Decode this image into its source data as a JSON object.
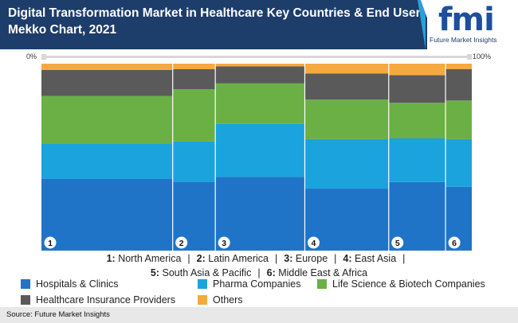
{
  "header": {
    "title": "Digital Transformation Market in Healthcare Key Countries & End User Mekko Chart, 2021",
    "logo_text": "fmi",
    "logo_subtitle": "Future Market Insights"
  },
  "axis": {
    "left_label": "0%",
    "right_label": "100%"
  },
  "colors": {
    "header_bg": "#1d3d6b",
    "hospitals": "#1f74c8",
    "pharma": "#1aa3dd",
    "life_science": "#6ab045",
    "insurance": "#5a5a5a",
    "others": "#f5a93e"
  },
  "chart_data": {
    "type": "mekko",
    "title": "Digital Transformation Market in Healthcare Key Countries & End User Mekko Chart, 2021",
    "categories": [
      "1",
      "2",
      "3",
      "4",
      "5",
      "6"
    ],
    "category_names": [
      "North America",
      "Latin America",
      "Europe",
      "East Asia",
      "South Asia & Pacific",
      "Middle East & Africa"
    ],
    "category_widths": [
      30.5,
      9.9,
      20.8,
      19.5,
      13.2,
      6.1
    ],
    "series": [
      {
        "name": "Hospitals & Clinics",
        "values": [
          40.0,
          37.5,
          41.0,
          34.5,
          38.5,
          35.5
        ]
      },
      {
        "name": "Pharma Companies",
        "values": [
          19.5,
          22.0,
          29.5,
          27.5,
          24.5,
          26.5
        ]
      },
      {
        "name": "Life Science & Biotech Companies",
        "values": [
          26.5,
          28.5,
          22.5,
          22.0,
          20.0,
          21.5
        ]
      },
      {
        "name": "Healthcare Insurance Providers",
        "values": [
          14.5,
          11.0,
          9.5,
          14.5,
          15.5,
          17.5
        ]
      },
      {
        "name": "Others",
        "values": [
          3.5,
          3.0,
          1.5,
          5.5,
          6.5,
          3.0
        ]
      }
    ],
    "xlim": [
      0,
      100
    ],
    "ylim": [
      0,
      100
    ]
  },
  "legend": {
    "country_line_1": [
      {
        "num": "1:",
        "name": "North America"
      },
      {
        "num": "2:",
        "name": "Latin America"
      },
      {
        "num": "3:",
        "name": "Europe"
      },
      {
        "num": "4:",
        "name": "East Asia"
      }
    ],
    "country_line_2": [
      {
        "num": "5:",
        "name": "South Asia & Pacific"
      },
      {
        "num": "6:",
        "name": "Middle East & Africa"
      }
    ],
    "separator": "|",
    "series": [
      {
        "label": "Hospitals & Clinics",
        "color": "#1f74c8"
      },
      {
        "label": "Pharma Companies",
        "color": "#1aa3dd"
      },
      {
        "label": "Life Science & Biotech Companies",
        "color": "#6ab045"
      },
      {
        "label": "Healthcare Insurance Providers",
        "color": "#5a5a5a"
      },
      {
        "label": "Others",
        "color": "#f5a93e"
      }
    ]
  },
  "source": "Source: Future Market Insights"
}
